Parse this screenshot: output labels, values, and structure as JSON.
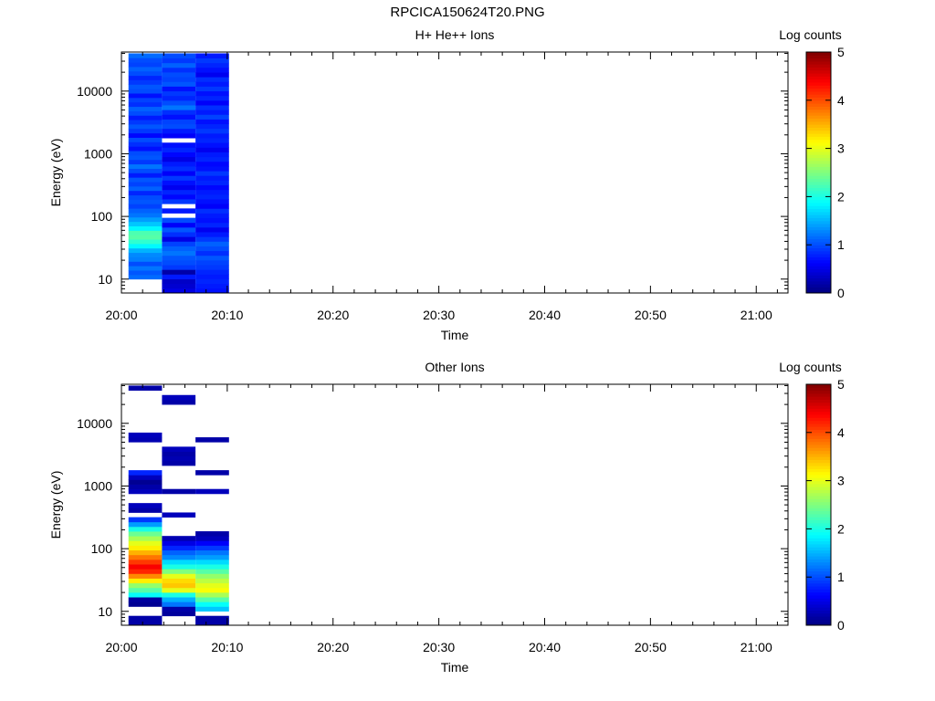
{
  "figure_title": "RPCICA150624T20.PNG",
  "colors": {
    "colormap": [
      "#00007f",
      "#0000ff",
      "#007fff",
      "#00ffff",
      "#7fff7f",
      "#ffff00",
      "#ff7f00",
      "#ff0000",
      "#7f0000"
    ],
    "axes": "#000000",
    "background": "#ffffff"
  },
  "chart_data": [
    {
      "type": "heatmap",
      "title": "H+ He++ Ions",
      "xlabel": "Time",
      "ylabel": "Energy (eV)",
      "yscale": "log",
      "xlim": [
        "20:00",
        "21:03"
      ],
      "ylim": [
        6,
        42000
      ],
      "xticks": [
        "20:00",
        "20:10",
        "20:20",
        "20:30",
        "20:40",
        "20:50",
        "21:00"
      ],
      "yticks": [
        "10",
        "100",
        "1000",
        "10000"
      ],
      "colorbar": {
        "label": "Log counts",
        "range": [
          0,
          5
        ],
        "ticks": [
          "0",
          "1",
          "2",
          "3",
          "4",
          "5"
        ]
      },
      "grid": false,
      "columns": [
        {
          "time_start": "20:00:40",
          "time_end": "20:03:50",
          "energy_min": 10,
          "energy_max": 40000,
          "log_counts": [
            1.15,
            1.05,
            1.2,
            1.0,
            1.25,
            1.3,
            1.5,
            1.85,
            2.1,
            2.3,
            2.25,
            1.85,
            1.6,
            1.4,
            1.2,
            1.1,
            0.95,
            1.05,
            1.0,
            0.8,
            1.1,
            0.95,
            1.05,
            0.75,
            1.0,
            1.2,
            0.9,
            1.05,
            1.0,
            0.7,
            0.85,
            1.0,
            0.65,
            0.9,
            1.05,
            0.9,
            0.75,
            1.0,
            1.1,
            0.85,
            0.95,
            0.7,
            1.0,
            1.05,
            0.9,
            0.8,
            1.0,
            1.1,
            0.95,
            1.0,
            1.15
          ]
        },
        {
          "time_start": "20:03:50",
          "time_end": "20:07:00",
          "energy_min": 6,
          "energy_max": 40000,
          "log_counts": [
            0.5,
            0.4,
            0.35,
            0.75,
            0.2,
            0.9,
            1.0,
            1.05,
            1.2,
            1.1,
            0.95,
            0.5,
            0.85,
            1.05,
            0.6,
            1.0,
            null,
            0.75,
            null,
            0.9,
            0.65,
            0.8,
            0.55,
            0.7,
            0.9,
            0.6,
            0.85,
            0.75,
            0.5,
            0.65,
            0.8,
            0.7,
            null,
            0.6,
            0.75,
            1.0,
            0.95,
            0.7,
            0.85,
            1.2,
            1.0,
            0.8,
            0.9,
            0.7,
            1.05,
            0.95,
            1.0,
            0.85,
            1.1,
            0.9,
            1.0
          ]
        },
        {
          "time_start": "20:07:00",
          "time_end": "20:10:10",
          "energy_min": 6,
          "energy_max": 40000,
          "log_counts": [
            0.7,
            0.75,
            0.8,
            0.75,
            0.8,
            0.9,
            0.95,
            1.05,
            0.85,
            1.0,
            1.1,
            0.9,
            0.75,
            0.55,
            0.8,
            0.7,
            0.75,
            0.85,
            0.6,
            0.7,
            0.8,
            0.75,
            0.65,
            0.8,
            0.75,
            0.9,
            0.7,
            0.65,
            0.8,
            0.75,
            0.55,
            0.7,
            0.8,
            0.75,
            0.9,
            0.8,
            0.7,
            0.95,
            0.75,
            0.85,
            0.6,
            0.8,
            0.7,
            0.9,
            0.75,
            0.85,
            0.55,
            0.7,
            0.8,
            0.9,
            0.75
          ]
        }
      ]
    },
    {
      "type": "heatmap",
      "title": "Other Ions",
      "xlabel": "Time",
      "ylabel": "Energy (eV)",
      "yscale": "log",
      "xlim": [
        "20:00",
        "21:03"
      ],
      "ylim": [
        6,
        42000
      ],
      "xticks": [
        "20:00",
        "20:10",
        "20:20",
        "20:30",
        "20:40",
        "20:50",
        "21:00"
      ],
      "yticks": [
        "10",
        "100",
        "1000",
        "10000"
      ],
      "colorbar": {
        "label": "Log counts",
        "range": [
          0,
          5
        ],
        "ticks": [
          "0",
          "1",
          "2",
          "3",
          "4",
          "5"
        ]
      },
      "grid": false,
      "columns": [
        {
          "time_start": "20:00:40",
          "time_end": "20:03:50",
          "energy_min": 6,
          "energy_max": 40000,
          "log_counts": [
            0.2,
            0.2,
            null,
            null,
            0.1,
            0.15,
            1.9,
            2.3,
            2.6,
            3.2,
            3.7,
            4.2,
            4.4,
            4.1,
            3.8,
            3.5,
            3.2,
            3.0,
            2.7,
            2.4,
            2.0,
            1.4,
            0.9,
            null,
            0.2,
            0.3,
            null,
            null,
            0.3,
            0.2,
            0.1,
            0.3,
            0.8,
            null,
            null,
            null,
            null,
            null,
            null,
            0.25,
            0.3,
            null,
            null,
            null,
            null,
            null,
            null,
            null,
            null,
            null,
            0.2
          ]
        },
        {
          "time_start": "20:03:50",
          "time_end": "20:07:00",
          "energy_min": 6,
          "energy_max": 40000,
          "log_counts": [
            null,
            null,
            0.15,
            0.2,
            1.2,
            1.5,
            2.0,
            3.0,
            3.4,
            3.3,
            3.0,
            2.5,
            2.0,
            1.7,
            1.3,
            1.1,
            0.8,
            0.5,
            0.25,
            null,
            null,
            null,
            null,
            0.3,
            null,
            null,
            null,
            null,
            0.2,
            null,
            null,
            null,
            null,
            null,
            0.2,
            0.25,
            0.2,
            0.3,
            null,
            null,
            null,
            null,
            null,
            null,
            null,
            null,
            null,
            0.2,
            0.3,
            null,
            null
          ]
        },
        {
          "time_start": "20:07:00",
          "time_end": "20:10:10",
          "energy_min": 6,
          "energy_max": 40000,
          "log_counts": [
            0.2,
            0.2,
            null,
            1.6,
            1.9,
            2.3,
            2.7,
            3.1,
            3.0,
            2.8,
            2.6,
            2.3,
            2.0,
            1.7,
            1.4,
            1.2,
            0.9,
            0.6,
            0.3,
            0.2,
            null,
            null,
            null,
            null,
            null,
            null,
            null,
            null,
            0.3,
            null,
            null,
            null,
            0.2,
            null,
            null,
            null,
            null,
            null,
            null,
            0.2,
            null,
            null,
            null,
            null,
            null,
            null,
            null,
            null,
            null,
            null,
            null
          ]
        }
      ]
    }
  ]
}
